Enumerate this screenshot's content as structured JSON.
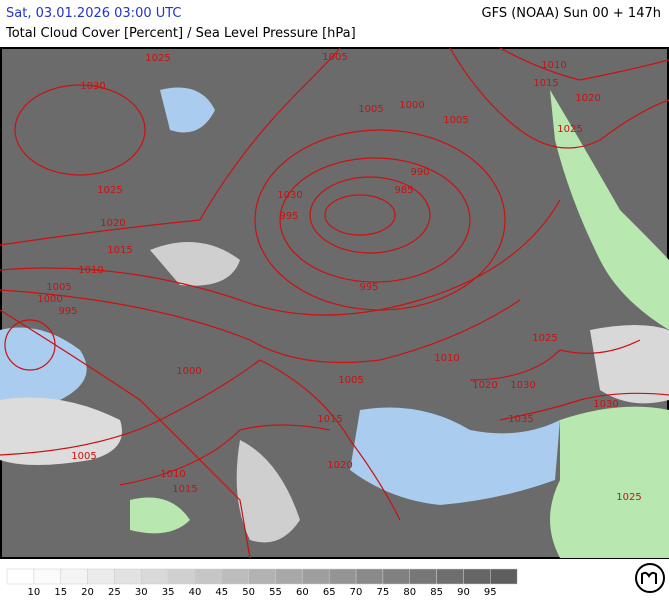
{
  "header": {
    "left": "Sat, 03.01.2026 03:00 UTC",
    "right": "GFS (NOAA) Sun 00 + 147h",
    "subtitle": "Total Cloud Cover [Percent] / Sea Level Pressure [hPa]"
  },
  "isobars": [
    1025,
    1005,
    1010,
    1015,
    1030,
    1005,
    1000,
    1020,
    1005,
    1025,
    990,
    985,
    1025,
    1030,
    995,
    1020,
    1015,
    1010,
    1005,
    995,
    1000,
    995,
    1025,
    1010,
    1000,
    1005,
    1020,
    1030,
    1030,
    1015,
    1035,
    1005,
    1020,
    1010,
    1015,
    1025
  ],
  "colorbar": {
    "labels": [
      10,
      15,
      20,
      25,
      30,
      35,
      40,
      45,
      50,
      55,
      60,
      65,
      70,
      75,
      80,
      85,
      90,
      95
    ],
    "colors": [
      "#ffffff",
      "#fbfbfb",
      "#f4f4f4",
      "#ebebeb",
      "#e2e2e2",
      "#d9d9d9",
      "#d0d0d0",
      "#c6c6c6",
      "#bcbcbc",
      "#b2b2b2",
      "#a8a8a8",
      "#9e9e9e",
      "#949494",
      "#8a8a8a",
      "#808080",
      "#777777",
      "#6e6e6e",
      "#666666",
      "#5e5e5e"
    ]
  }
}
